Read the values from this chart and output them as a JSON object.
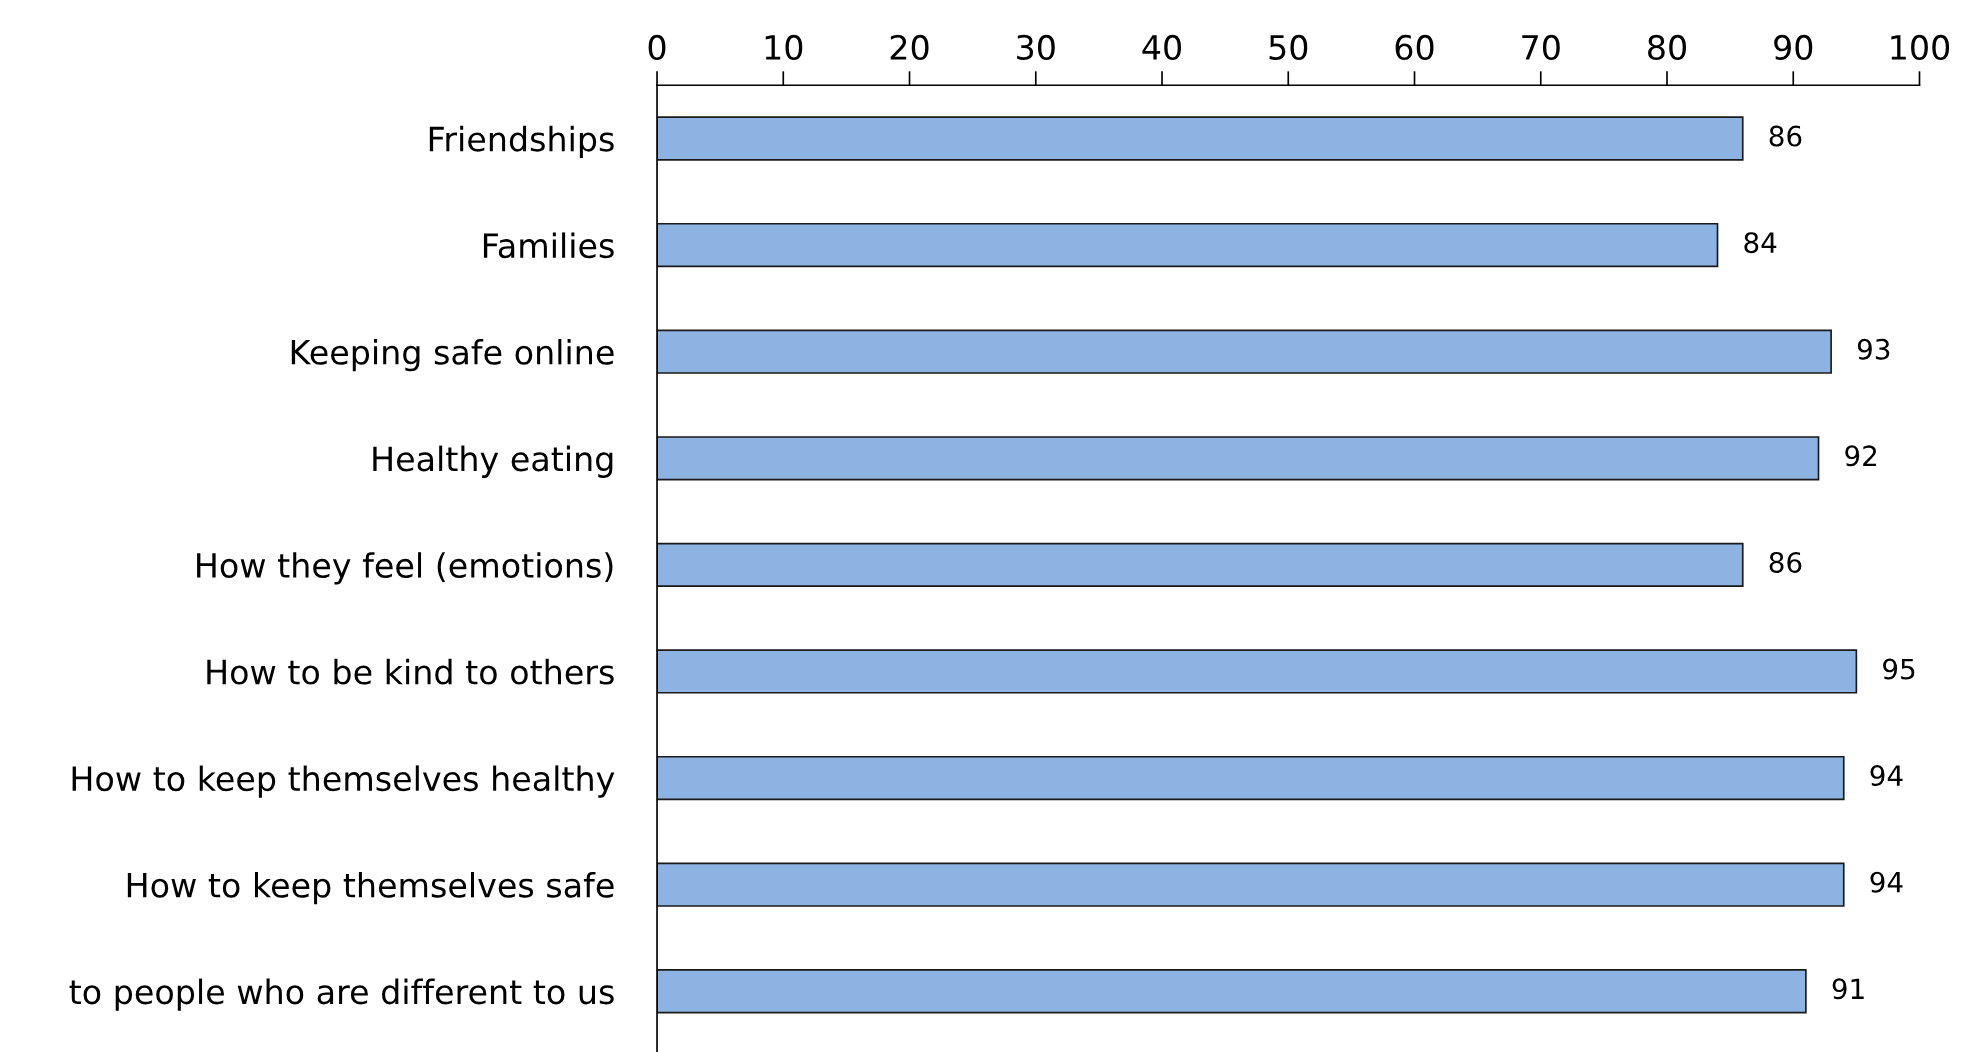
{
  "chart_data": {
    "type": "bar",
    "orientation": "horizontal",
    "categories": [
      "Friendships",
      "Families",
      "Keeping safe online",
      "Healthy eating",
      "How they feel (emotions)",
      "How to be kind to others",
      "How to keep themselves healthy",
      "How to keep themselves safe",
      "to people who are different to us"
    ],
    "values": [
      86,
      84,
      93,
      92,
      86,
      95,
      94,
      94,
      91
    ],
    "color": "#8db3e2",
    "xlim": [
      0,
      100
    ],
    "xticks": [
      0,
      10,
      20,
      30,
      40,
      50,
      60,
      70,
      80,
      90,
      100
    ],
    "data_labels": true,
    "grid": false,
    "legend": false
  }
}
